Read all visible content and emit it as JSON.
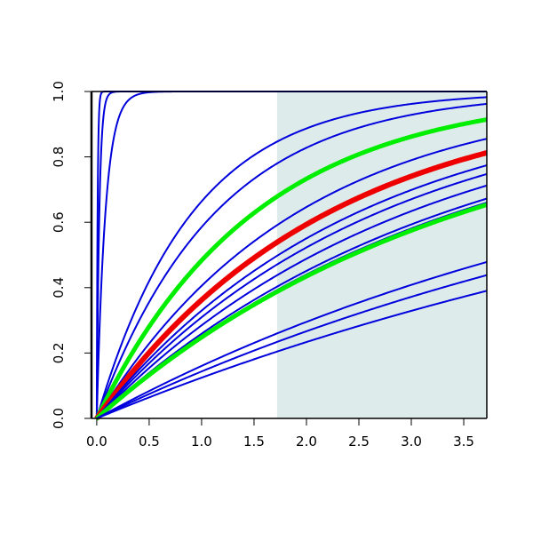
{
  "chart_data": {
    "type": "line",
    "title": "",
    "xlabel": "",
    "ylabel": "",
    "xlim": [
      -0.05,
      3.72
    ],
    "ylim": [
      0,
      1
    ],
    "x_ticks": [
      0.0,
      0.5,
      1.0,
      1.5,
      2.0,
      2.5,
      3.0,
      3.5
    ],
    "x_tick_labels": [
      "0.0",
      "0.5",
      "1.0",
      "1.5",
      "2.0",
      "2.5",
      "3.0",
      "3.5"
    ],
    "y_ticks": [
      0.0,
      0.2,
      0.4,
      0.6,
      0.8,
      1.0
    ],
    "y_tick_labels": [
      "0.0",
      "0.2",
      "0.4",
      "0.6",
      "0.8",
      "1.0"
    ],
    "grid": false,
    "legend": "none",
    "shaded_region": {
      "x_start": 1.72,
      "x_end": 3.72,
      "color": "#deebeb"
    },
    "colors": {
      "blue": "#0000dd",
      "green": "#00ee00",
      "red": "#ee0000",
      "axis": "#000000"
    },
    "series_style": "cdf 1 - exp(-rate*x), one rate per curve",
    "series": [
      {
        "rate": 120,
        "color": "#0000dd",
        "width": 2
      },
      {
        "rate": 40,
        "color": "#0000dd",
        "width": 2
      },
      {
        "rate": 12,
        "color": "#0000dd",
        "width": 2
      },
      {
        "rate": 1.09,
        "color": "#0000dd",
        "width": 2
      },
      {
        "rate": 0.88,
        "color": "#0000dd",
        "width": 2
      },
      {
        "rate": 0.66,
        "color": "#00ee00",
        "width": 5
      },
      {
        "rate": 0.52,
        "color": "#0000dd",
        "width": 2
      },
      {
        "rate": 0.45,
        "color": "#ee0000",
        "width": 6
      },
      {
        "rate": 0.4,
        "color": "#0000dd",
        "width": 2
      },
      {
        "rate": 0.37,
        "color": "#0000dd",
        "width": 2
      },
      {
        "rate": 0.335,
        "color": "#0000dd",
        "width": 2
      },
      {
        "rate": 0.3,
        "color": "#0000dd",
        "width": 2
      },
      {
        "rate": 0.29,
        "color": "#0000dd",
        "width": 2
      },
      {
        "rate": 0.285,
        "color": "#00ee00",
        "width": 5
      },
      {
        "rate": 0.175,
        "color": "#0000dd",
        "width": 2
      },
      {
        "rate": 0.155,
        "color": "#0000dd",
        "width": 2
      },
      {
        "rate": 0.133,
        "color": "#0000dd",
        "width": 2
      }
    ]
  }
}
